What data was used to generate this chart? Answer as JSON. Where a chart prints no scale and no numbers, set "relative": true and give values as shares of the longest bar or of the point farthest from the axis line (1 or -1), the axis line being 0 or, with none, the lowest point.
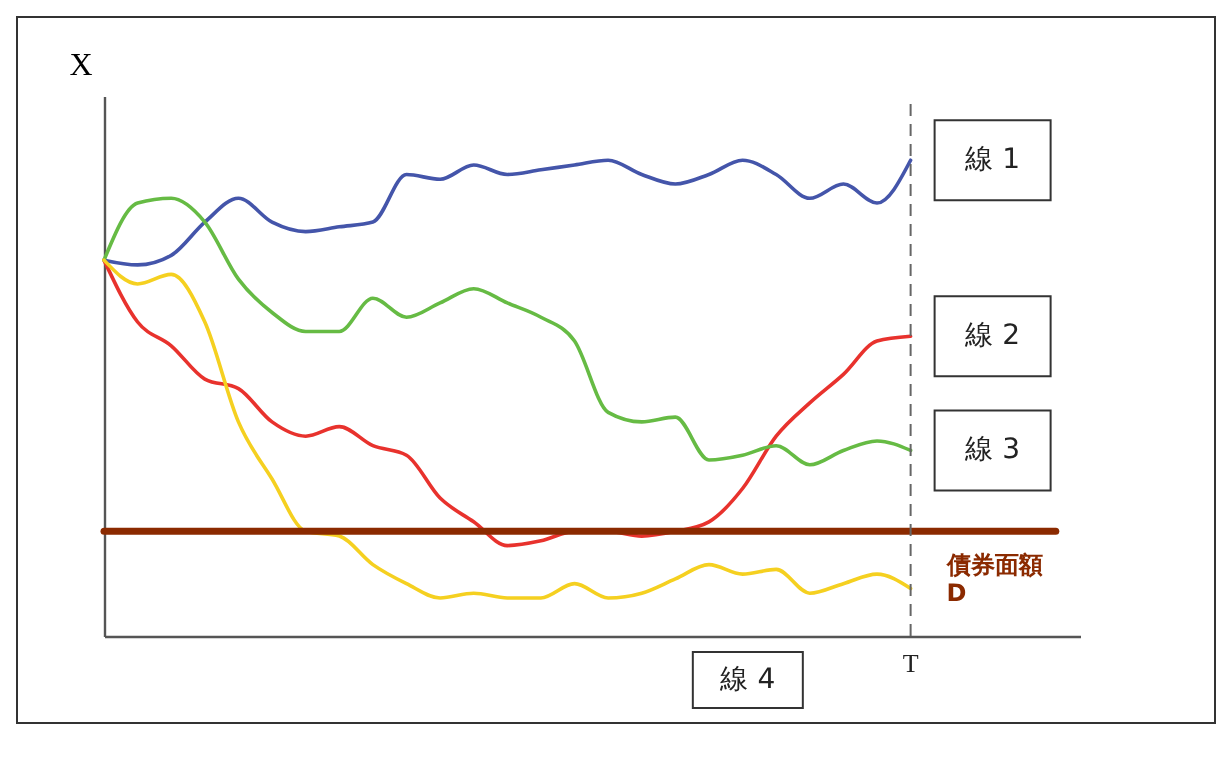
{
  "chart_data": {
    "type": "line",
    "relative": true,
    "ylabel": "X",
    "categories": [
      null,
      null,
      null,
      null,
      null,
      null,
      null,
      null,
      null,
      null,
      null,
      null,
      null,
      null,
      null,
      null,
      null,
      null,
      null,
      null,
      null,
      null,
      null,
      null,
      null
    ],
    "series": [
      {
        "name": "線 1",
        "color": "#4455aa",
        "values": [
          0.79,
          0.78,
          0.8,
          0.87,
          0.92,
          0.87,
          0.85,
          0.86,
          0.87,
          0.97,
          0.96,
          0.99,
          0.97,
          0.98,
          0.99,
          1.0,
          0.97,
          0.95,
          0.97,
          1.0,
          0.97,
          0.92,
          0.95,
          0.91,
          1.0
        ]
      },
      {
        "name": "線 2",
        "color": "#e8322d",
        "values": [
          0.79,
          0.66,
          0.61,
          0.54,
          0.52,
          0.45,
          0.42,
          0.44,
          0.4,
          0.38,
          0.29,
          0.24,
          0.19,
          0.2,
          0.22,
          0.22,
          0.21,
          0.22,
          0.24,
          0.31,
          0.42,
          0.49,
          0.55,
          0.62,
          0.63
        ]
      },
      {
        "name": "線 3",
        "color": "#66bb44",
        "values": [
          0.79,
          0.91,
          0.92,
          0.87,
          0.75,
          0.68,
          0.64,
          0.64,
          0.71,
          0.67,
          0.7,
          0.73,
          0.7,
          0.67,
          0.62,
          0.47,
          0.45,
          0.46,
          0.37,
          0.38,
          0.4,
          0.36,
          0.39,
          0.41,
          0.39
        ]
      },
      {
        "name": "線 4",
        "color": "#f5d020",
        "values": [
          0.79,
          0.74,
          0.76,
          0.66,
          0.45,
          0.33,
          0.22,
          0.21,
          0.15,
          0.11,
          0.08,
          0.09,
          0.08,
          0.08,
          0.11,
          0.08,
          0.09,
          0.12,
          0.15,
          0.13,
          0.14,
          0.09,
          0.11,
          0.13,
          0.1
        ]
      }
    ],
    "ref_lines": [
      {
        "axis": "y",
        "value": 0.22,
        "label": "債券面額\nD",
        "color": "#8b2a00"
      },
      {
        "axis": "x",
        "label": "T",
        "line_style": "dashed",
        "color": "#666666"
      }
    ],
    "line_style": "solid"
  }
}
